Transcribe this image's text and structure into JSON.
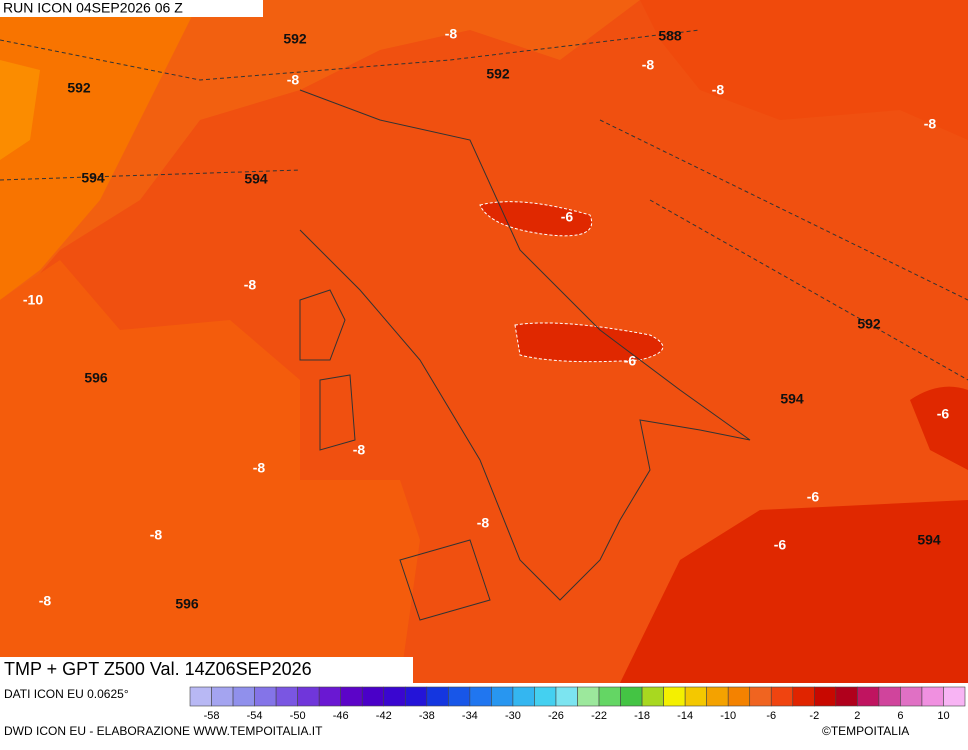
{
  "header": {
    "run": "RUN ICON 04SEP2026 06 Z"
  },
  "map": {
    "title": "TMP + GPT Z500 Val. 14Z06SEP2026",
    "height_labels": [
      "592",
      "588",
      "592",
      "592",
      "594",
      "594",
      "592",
      "596",
      "594",
      "594",
      "596"
    ],
    "temperature_labels": [
      "-8",
      "-8",
      "-8",
      "-8",
      "-8",
      "-6",
      "-8",
      "-10",
      "-6",
      "-6",
      "-8",
      "-8",
      "-6",
      "-8",
      "-8",
      "-6",
      "-8"
    ]
  },
  "footer": {
    "data_source": "DATI ICON EU 0.0625°",
    "credit": "DWD ICON EU - ELABORAZIONE WWW.TEMPOITALIA.IT",
    "copyright": "©TEMPOITALIA"
  },
  "colorbar": {
    "labels": [
      "-58",
      "-54",
      "-50",
      "-46",
      "-42",
      "-38",
      "-34",
      "-30",
      "-26",
      "-22",
      "-18",
      "-14",
      "-10",
      "-6",
      "-2",
      "2",
      "6",
      "10"
    ],
    "colors": [
      "#b8b8f4",
      "#a4a4f0",
      "#9090ec",
      "#8474e8",
      "#7a56e2",
      "#7036da",
      "#6a18d2",
      "#5c04c8",
      "#4a00c8",
      "#3a06d0",
      "#2414d8",
      "#1436e0",
      "#1856e8",
      "#2076f0",
      "#2896f0",
      "#34b6f0",
      "#44d0f0",
      "#7ce4f0",
      "#9ce89c",
      "#64d664",
      "#44c444",
      "#a8d820",
      "#f4f000",
      "#f4c800",
      "#f4a200",
      "#f48200",
      "#f06420",
      "#f04410",
      "#e02400",
      "#c80800",
      "#b0001c",
      "#c01460",
      "#d0449c",
      "#e070c4",
      "#f090e0",
      "#f8b4f4"
    ]
  }
}
